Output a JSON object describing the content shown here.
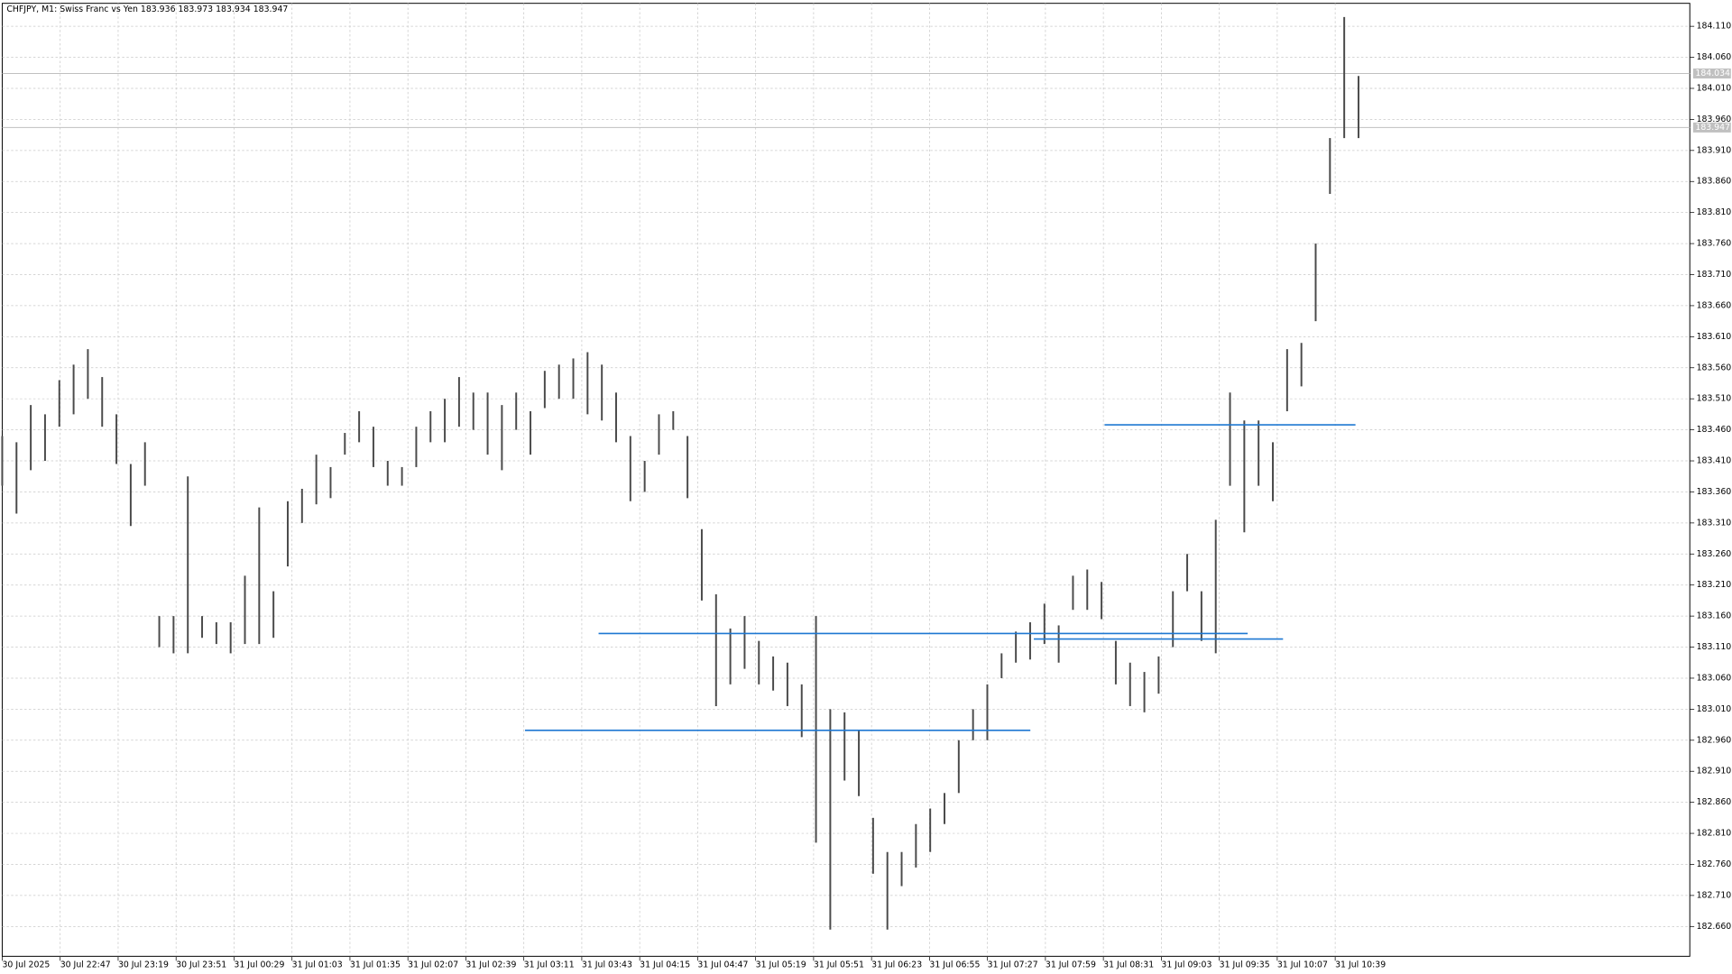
{
  "chart_data": {
    "type": "bars",
    "symbol": "CHFJPY, M1:",
    "description": "Swiss Franc vs Yen",
    "ohlc": [
      183.936,
      183.973,
      183.934,
      183.947
    ],
    "categories": [
      "30 Jul 2025",
      "30 Jul 22:47",
      "30 Jul 23:19",
      "30 Jul 23:51",
      "31 Jul 00:29",
      "31 Jul 01:03",
      "31 Jul 01:35",
      "31 Jul 02:07",
      "31 Jul 02:39",
      "31 Jul 03:11",
      "31 Jul 03:43",
      "31 Jul 04:15",
      "31 Jul 04:47",
      "31 Jul 05:19",
      "31 Jul 05:51",
      "31 Jul 06:23",
      "31 Jul 06:55",
      "31 Jul 07:27",
      "31 Jul 07:59",
      "31 Jul 08:31",
      "31 Jul 09:03",
      "31 Jul 09:35",
      "31 Jul 10:07",
      "31 Jul 10:39"
    ],
    "color": "#4a4a4a",
    "high": [
      183.45,
      183.44,
      183.5,
      183.485,
      183.54,
      183.565,
      183.59,
      183.545,
      183.485,
      183.405,
      183.44,
      183.16,
      183.16,
      183.385,
      183.16,
      183.15,
      183.15,
      183.225,
      183.335,
      183.2,
      183.345,
      183.365,
      183.42,
      183.4,
      183.455,
      183.49,
      183.465,
      183.41,
      183.4,
      183.465,
      183.49,
      183.51,
      183.545,
      183.52,
      183.52,
      183.5,
      183.52,
      183.49,
      183.555,
      183.565,
      183.575,
      183.585,
      183.565,
      183.52,
      183.45,
      183.41,
      183.485,
      183.49,
      183.45,
      183.3,
      183.195,
      183.14,
      183.16,
      183.12,
      183.095,
      183.085,
      183.05,
      183.16,
      183.01,
      183.005,
      182.975,
      182.835,
      182.78,
      182.78,
      182.825,
      182.85,
      182.875,
      182.96,
      183.01,
      183.05,
      183.1,
      183.135,
      183.15,
      183.18,
      183.145,
      183.225,
      183.235,
      183.215,
      183.12,
      183.085,
      183.07,
      183.095,
      183.2,
      183.26,
      183.2,
      183.315,
      183.52,
      183.475,
      183.475,
      183.44,
      183.59,
      183.6,
      183.76,
      183.93,
      184.125,
      184.03
    ],
    "low": [
      183.37,
      183.325,
      183.395,
      183.41,
      183.465,
      183.485,
      183.51,
      183.465,
      183.405,
      183.305,
      183.37,
      183.11,
      183.1,
      183.1,
      183.125,
      183.115,
      183.1,
      183.115,
      183.115,
      183.125,
      183.24,
      183.31,
      183.34,
      183.35,
      183.42,
      183.44,
      183.4,
      183.37,
      183.37,
      183.4,
      183.44,
      183.44,
      183.465,
      183.46,
      183.42,
      183.395,
      183.46,
      183.42,
      183.495,
      183.51,
      183.51,
      183.485,
      183.475,
      183.44,
      183.345,
      183.36,
      183.42,
      183.46,
      183.35,
      183.185,
      183.015,
      183.05,
      183.075,
      183.05,
      183.04,
      183.015,
      182.965,
      182.795,
      182.655,
      182.895,
      182.87,
      182.745,
      182.655,
      182.725,
      182.755,
      182.78,
      182.825,
      182.875,
      182.96,
      182.96,
      183.06,
      183.085,
      183.09,
      183.115,
      183.085,
      183.17,
      183.17,
      183.155,
      183.05,
      183.015,
      183.005,
      183.035,
      183.11,
      183.2,
      183.12,
      183.1,
      183.37,
      183.295,
      183.37,
      183.345,
      183.49,
      183.53,
      183.635,
      183.84,
      183.93,
      183.93
    ],
    "ylim": [
      182.612,
      184.147
    ],
    "yticks": [
      {
        "value": 182.66,
        "label": "182.660"
      },
      {
        "value": 182.71,
        "label": "182.710"
      },
      {
        "value": 182.76,
        "label": "182.760"
      },
      {
        "value": 182.81,
        "label": "182.810"
      },
      {
        "value": 182.86,
        "label": "182.860"
      },
      {
        "value": 182.91,
        "label": "182.910"
      },
      {
        "value": 182.96,
        "label": "182.960"
      },
      {
        "value": 183.01,
        "label": "183.010"
      },
      {
        "value": 183.06,
        "label": "183.060"
      },
      {
        "value": 183.11,
        "label": "183.110"
      },
      {
        "value": 183.16,
        "label": "183.160"
      },
      {
        "value": 183.21,
        "label": "183.210"
      },
      {
        "value": 183.26,
        "label": "183.260"
      },
      {
        "value": 183.31,
        "label": "183.310"
      },
      {
        "value": 183.36,
        "label": "183.360"
      },
      {
        "value": 183.41,
        "label": "183.410"
      },
      {
        "value": 183.46,
        "label": "183.460"
      },
      {
        "value": 183.51,
        "label": "183.510"
      },
      {
        "value": 183.56,
        "label": "183.560"
      },
      {
        "value": 183.61,
        "label": "183.610"
      },
      {
        "value": 183.66,
        "label": "183.660"
      },
      {
        "value": 183.71,
        "label": "183.710"
      },
      {
        "value": 183.76,
        "label": "183.760"
      },
      {
        "value": 183.81,
        "label": "183.810"
      },
      {
        "value": 183.86,
        "label": "183.860"
      },
      {
        "value": 183.91,
        "label": "183.910"
      },
      {
        "value": 183.96,
        "label": "183.960"
      },
      {
        "value": 184.01,
        "label": "184.010"
      },
      {
        "value": 184.06,
        "label": "184.060"
      },
      {
        "value": 184.11,
        "label": "184.110"
      }
    ],
    "grid": true,
    "price_lines": [
      {
        "value": 184.034,
        "label": "184.034"
      },
      {
        "value": 183.947,
        "label": "183.947"
      }
    ],
    "hlines": {
      "color": "#1e78d2",
      "values": [
        183.468,
        183.132,
        183.123,
        182.976
      ],
      "start": [
        19.02,
        10.29,
        17.8,
        9.02
      ],
      "end": [
        23.35,
        21.49,
        22.1,
        17.74
      ]
    }
  }
}
